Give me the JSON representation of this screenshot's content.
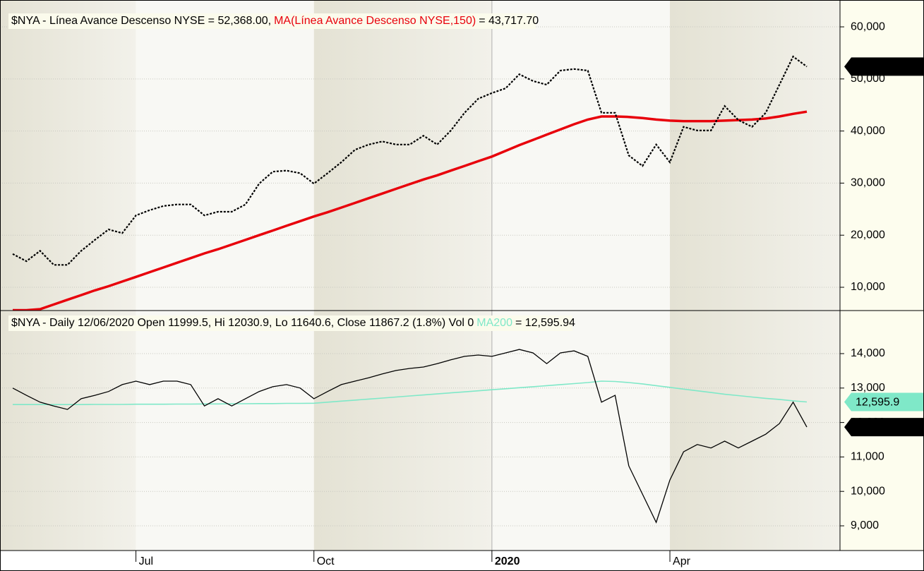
{
  "chart_data": [
    {
      "type": "line",
      "series": [
        {
          "name": "$NYA - Línea Avance Descenso NYSE = 52,368.00,",
          "color": "#000000",
          "dashed": true,
          "values": [
            16400,
            15000,
            17000,
            14300,
            14300,
            17000,
            19100,
            21100,
            20400,
            23800,
            24800,
            25600,
            25900,
            25900,
            23800,
            24500,
            24500,
            25900,
            29900,
            32200,
            32400,
            31900,
            29900,
            31900,
            34000,
            36400,
            37400,
            38000,
            37400,
            37400,
            39100,
            37400,
            40100,
            43500,
            46200,
            47300,
            48200,
            50900,
            49600,
            48900,
            51600,
            51900,
            51600,
            43500,
            43500,
            35300,
            33300,
            37400,
            34000,
            40800,
            40100,
            40100,
            44800,
            42100,
            40800,
            43500,
            48900,
            54300,
            52368
          ],
          "value_labels": [
            null,
            null,
            null,
            null,
            null,
            null,
            null,
            null,
            null,
            null,
            null,
            null,
            null,
            null,
            null,
            null,
            null,
            null,
            null,
            null,
            null,
            null,
            null,
            null,
            null,
            null,
            null,
            null,
            null,
            null,
            null,
            null,
            null,
            null,
            null,
            null,
            null,
            null,
            null,
            null,
            null,
            null,
            null,
            null,
            null,
            null,
            null,
            null,
            null,
            null,
            null,
            null,
            null,
            null,
            null,
            null,
            null,
            null,
            "52,368"
          ]
        },
        {
          "name": "MA(Línea Avance Descenso NYSE,150)",
          "legend_value": "= 43,717.70",
          "color": "#e8000b",
          "values": [
            5600,
            5600,
            5800,
            6700,
            7600,
            8500,
            9400,
            10200,
            11100,
            12000,
            12900,
            13800,
            14700,
            15600,
            16500,
            17300,
            18200,
            19100,
            20000,
            20900,
            21800,
            22700,
            23600,
            24400,
            25300,
            26200,
            27100,
            28000,
            28900,
            29800,
            30700,
            31500,
            32400,
            33300,
            34200,
            35100,
            36200,
            37300,
            38300,
            39300,
            40300,
            41300,
            42200,
            42800,
            42800,
            42700,
            42500,
            42200,
            42000,
            41900,
            41900,
            41900,
            42000,
            42100,
            42200,
            42400,
            42800,
            43300,
            43717.7
          ]
        }
      ],
      "ylim": [
        5530,
        63800
      ],
      "yticks": [
        {
          "value": 10000,
          "label": "10,000"
        },
        {
          "value": 20000,
          "label": "20,000"
        },
        {
          "value": 30000,
          "label": "30,000"
        },
        {
          "value": 40000,
          "label": "40,000"
        },
        {
          "value": 50000,
          "label": "50,000"
        },
        {
          "value": 60000,
          "label": "60,000"
        }
      ],
      "grid": true
    },
    {
      "type": "line",
      "categories": [
        null,
        null,
        null,
        null,
        null,
        null,
        null,
        null,
        null,
        "Jul",
        null,
        null,
        null,
        null,
        null,
        null,
        null,
        null,
        null,
        null,
        null,
        null,
        "Oct",
        null,
        null,
        null,
        null,
        null,
        null,
        null,
        null,
        null,
        null,
        null,
        null,
        "2020",
        null,
        null,
        null,
        null,
        null,
        null,
        null,
        null,
        null,
        null,
        null,
        null,
        "Apr",
        null,
        null,
        null,
        null,
        null,
        null,
        null,
        null,
        null,
        null
      ],
      "series": [
        {
          "name": "$NYA - Daily 12/06/2020 Open 11999.5, Hi 12030.9, Lo 11640.6, Close 11867.2 (1.8%) Vol 0",
          "color": "#000000",
          "values": [
            13000,
            12790,
            12590,
            12480,
            12380,
            12690,
            12790,
            12900,
            13100,
            13200,
            13100,
            13200,
            13200,
            13100,
            12480,
            12690,
            12480,
            12690,
            12900,
            13040,
            13100,
            13000,
            12690,
            12900,
            13100,
            13200,
            13300,
            13410,
            13510,
            13570,
            13610,
            13710,
            13820,
            13920,
            13960,
            13920,
            14020,
            14120,
            14020,
            13710,
            14020,
            14080,
            13920,
            12590,
            12790,
            10740,
            9920,
            9100,
            10330,
            11150,
            11360,
            11260,
            11460,
            11260,
            11460,
            11660,
            11970,
            12590,
            11867.2
          ],
          "value_labels": [
            null,
            null,
            null,
            null,
            null,
            null,
            null,
            null,
            null,
            null,
            null,
            null,
            null,
            null,
            null,
            null,
            null,
            null,
            null,
            null,
            null,
            null,
            null,
            null,
            null,
            null,
            null,
            null,
            null,
            null,
            null,
            null,
            null,
            null,
            null,
            null,
            null,
            null,
            null,
            null,
            null,
            null,
            null,
            null,
            null,
            null,
            null,
            null,
            null,
            null,
            null,
            null,
            null,
            null,
            null,
            null,
            null,
            null,
            "11,867.2"
          ]
        },
        {
          "name": "MA200",
          "legend_value": "= 12,595.94",
          "color": "#7fe8c8",
          "values": [
            12520,
            12520,
            12520,
            12520,
            12520,
            12520,
            12525,
            12525,
            12525,
            12530,
            12530,
            12530,
            12535,
            12535,
            12540,
            12540,
            12545,
            12545,
            12550,
            12550,
            12555,
            12555,
            12560,
            12590,
            12620,
            12650,
            12680,
            12710,
            12740,
            12770,
            12800,
            12830,
            12860,
            12890,
            12920,
            12950,
            12980,
            13010,
            13040,
            13070,
            13100,
            13130,
            13160,
            13200,
            13190,
            13160,
            13120,
            13070,
            13020,
            12970,
            12920,
            12870,
            12820,
            12780,
            12740,
            12700,
            12670,
            12630,
            12595.94
          ],
          "value_labels": [
            null,
            null,
            null,
            null,
            null,
            null,
            null,
            null,
            null,
            null,
            null,
            null,
            null,
            null,
            null,
            null,
            null,
            null,
            null,
            null,
            null,
            null,
            null,
            null,
            null,
            null,
            null,
            null,
            null,
            null,
            null,
            null,
            null,
            null,
            null,
            null,
            null,
            null,
            null,
            null,
            null,
            null,
            null,
            null,
            null,
            null,
            null,
            null,
            null,
            null,
            null,
            null,
            null,
            null,
            null,
            null,
            null,
            null,
            "12,595.9"
          ]
        }
      ],
      "ylim": [
        8283,
        15250
      ],
      "yticks": [
        {
          "value": 9000,
          "label": "9,000"
        },
        {
          "value": 10000,
          "label": "10,000"
        },
        {
          "value": 11000,
          "label": "11,000"
        },
        {
          "value": 12000,
          "label": "12,000"
        },
        {
          "value": 13000,
          "label": "13,000"
        },
        {
          "value": 14000,
          "label": "14,000"
        }
      ],
      "grid": true
    }
  ]
}
